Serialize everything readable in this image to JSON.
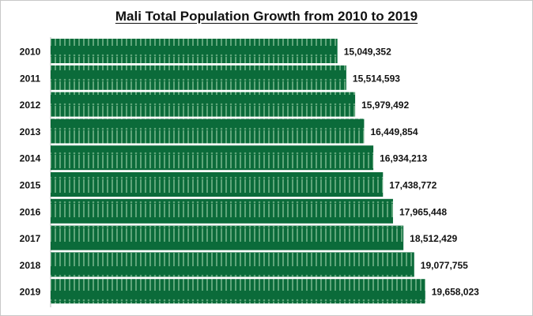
{
  "chart_data": {
    "type": "bar",
    "orientation": "horizontal",
    "title": "Mali Total Population Growth from 2010 to 2019",
    "xlabel": "",
    "ylabel": "",
    "categories": [
      "2010",
      "2011",
      "2012",
      "2013",
      "2014",
      "2015",
      "2016",
      "2017",
      "2018",
      "2019"
    ],
    "values": [
      15049352,
      15514593,
      15979492,
      16449854,
      16934213,
      17438772,
      17965448,
      18512429,
      19077755,
      19658023
    ],
    "data_labels": [
      "15,049,352",
      "15,514,593",
      "15,979,492",
      "16,449,854",
      "16,934,213",
      "17,438,772",
      "17,965,448",
      "18,512,429",
      "19,077,755",
      "19,658,023"
    ],
    "xlim": [
      0,
      20000000
    ],
    "grid": false,
    "legend": "none",
    "bar_color": "#0b6b3a",
    "pattern_color": "#5fa57a"
  }
}
